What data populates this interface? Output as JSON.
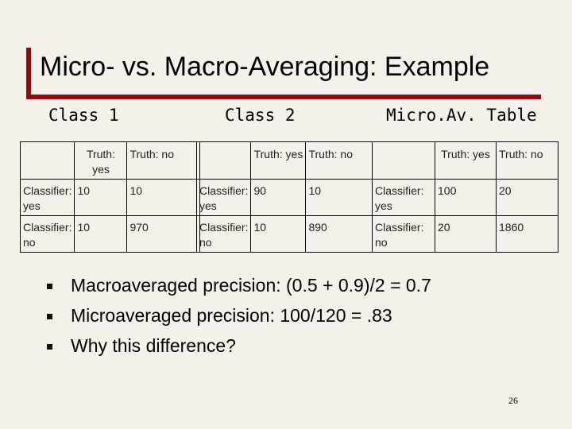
{
  "title": "Micro- vs. Macro-Averaging: Example",
  "headings": {
    "class1": "Class 1",
    "class2": "Class 2",
    "micro": "Micro.Av. Table"
  },
  "tables": {
    "class1": {
      "col_headers": [
        "Truth: yes",
        "Truth: no"
      ],
      "rows": [
        {
          "label": "Classifier: yes",
          "values": [
            "10",
            "10"
          ]
        },
        {
          "label": "Classifier: no",
          "values": [
            "10",
            "970"
          ]
        }
      ]
    },
    "class2": {
      "col_headers": [
        "Truth: yes",
        "Truth: no"
      ],
      "rows": [
        {
          "label": "Classifier: yes",
          "values": [
            "90",
            "10"
          ]
        },
        {
          "label": "Classifier: no",
          "values": [
            "10",
            "890"
          ]
        }
      ]
    },
    "micro": {
      "col_headers": [
        "Truth: yes",
        "Truth: no"
      ],
      "rows": [
        {
          "label": "Classifier: yes",
          "values": [
            "100",
            "20"
          ]
        },
        {
          "label": "Classifier: no",
          "values": [
            "20",
            "1860"
          ]
        }
      ]
    }
  },
  "bullets": [
    "Macroaveraged precision: (0.5 + 0.9)/2 = 0.7",
    "Microaveraged precision: 100/120 = .83",
    "Why this difference?"
  ],
  "page_number": "26",
  "colors": {
    "accent": "#8b0e12",
    "background": "#f3f1ea"
  }
}
